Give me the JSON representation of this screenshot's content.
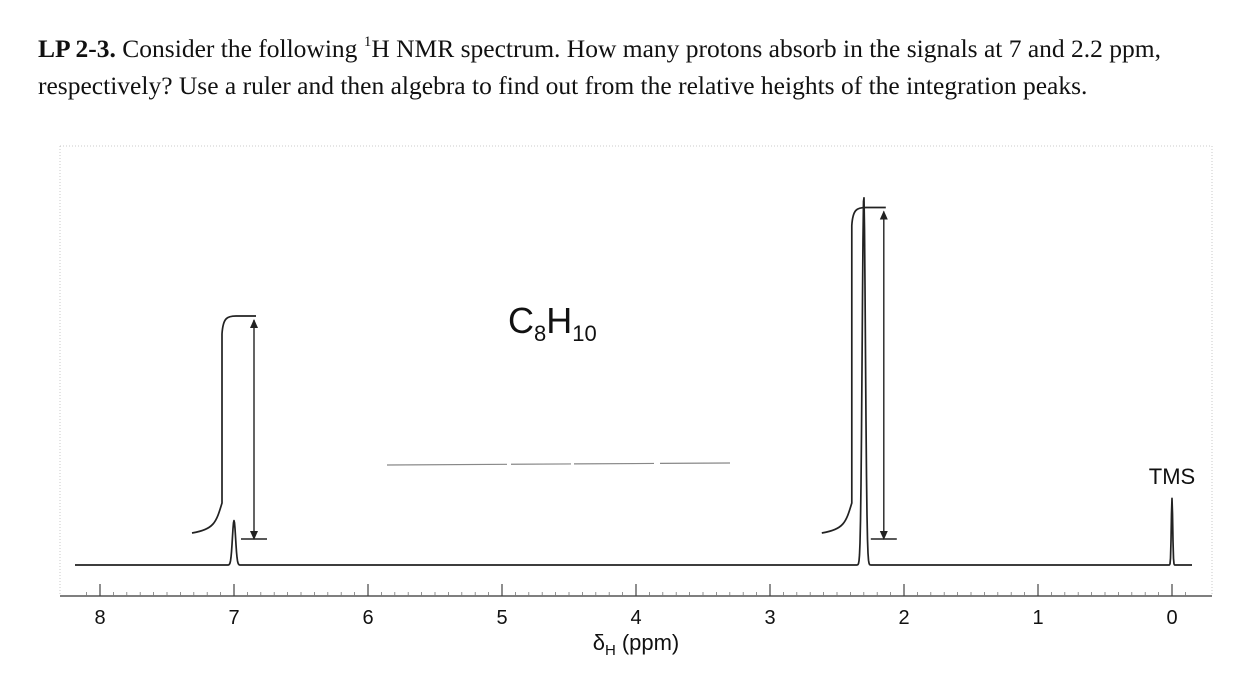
{
  "question": {
    "id": "LP 2-3.",
    "before_sup": "Consider the following",
    "sup": "1",
    "after_sup": "H NMR spectrum. How many protons absorb in the signals at 7 and 2.2 ppm, respectively? Use a ruler and then algebra to find out from the relative heights of the integration peaks."
  },
  "chart_data": {
    "type": "line",
    "title": "",
    "formula": {
      "main_a": "C",
      "sub_a": "8",
      "main_b": "H",
      "sub_b": "10"
    },
    "xlabel": {
      "delta": "δ",
      "sub": "H",
      "unit": "(ppm)"
    },
    "xlim": [
      8.2,
      -0.2
    ],
    "x_reversed": true,
    "ticks": [
      8,
      7,
      6,
      5,
      4,
      3,
      2,
      1,
      0
    ],
    "tick_labels": [
      "8",
      "7",
      "6",
      "5",
      "4",
      "3",
      "2",
      "1",
      "0"
    ],
    "peaks": [
      {
        "shift_ppm": 7.0,
        "height": 0.12,
        "integral_step": 0.62
      },
      {
        "shift_ppm": 2.3,
        "height": 1.0,
        "integral_step": 0.93
      },
      {
        "shift_ppm": 0.0,
        "height": 0.18,
        "integral_step": 0
      }
    ],
    "reference": {
      "label": "TMS",
      "shift_ppm": 0.0
    },
    "grid": false
  }
}
